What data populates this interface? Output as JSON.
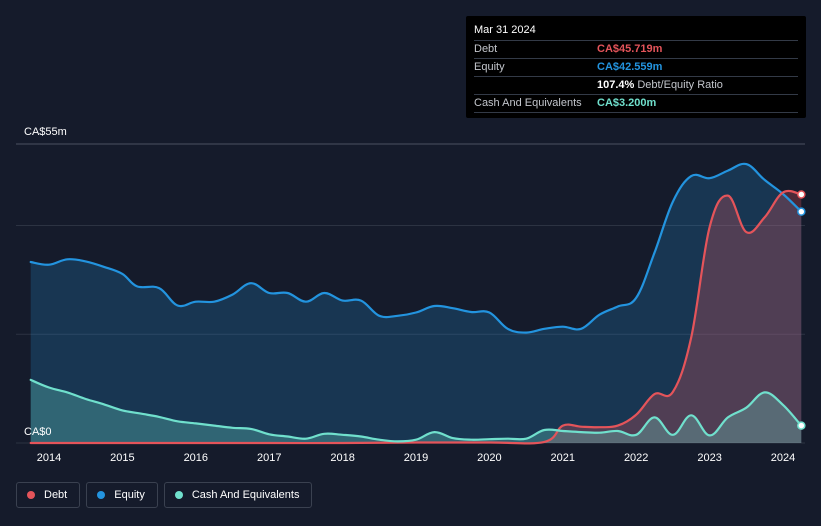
{
  "tooltip": {
    "date": "Mar 31 2024",
    "debt_label": "Debt",
    "debt_value": "CA$45.719m",
    "equity_label": "Equity",
    "equity_value": "CA$42.559m",
    "ratio_value": "107.4%",
    "ratio_label": "Debt/Equity Ratio",
    "cash_label": "Cash And Equivalents",
    "cash_value": "CA$3.200m"
  },
  "legend": [
    {
      "label": "Debt",
      "color": "#e4545a"
    },
    {
      "label": "Equity",
      "color": "#2394df"
    },
    {
      "label": "Cash And Equivalents",
      "color": "#70e0cd"
    }
  ],
  "colors": {
    "debt": "#e4545a",
    "equity": "#2394df",
    "cash": "#70e0cd",
    "background": "#151b2b",
    "grid": "#2c3342"
  },
  "chart_data": {
    "type": "area",
    "title": "",
    "xlabel": "",
    "ylabel": "",
    "y_top_label": "CA$55m",
    "y_bottom_label": "CA$0",
    "ylim": [
      0,
      55
    ],
    "xlim": [
      2013.55,
      2024.3
    ],
    "x_ticks": [
      "2014",
      "2015",
      "2016",
      "2017",
      "2018",
      "2019",
      "2020",
      "2021",
      "2022",
      "2023",
      "2024"
    ],
    "grid_values": [
      0,
      20,
      40,
      55
    ],
    "series": [
      {
        "name": "Equity",
        "points": [
          [
            2013.75,
            33.3
          ],
          [
            2014.0,
            32.8
          ],
          [
            2014.25,
            33.8
          ],
          [
            2014.5,
            33.4
          ],
          [
            2014.75,
            32.4
          ],
          [
            2015.0,
            31.1
          ],
          [
            2015.2,
            28.8
          ],
          [
            2015.5,
            28.5
          ],
          [
            2015.75,
            25.3
          ],
          [
            2016.0,
            26.0
          ],
          [
            2016.25,
            26.0
          ],
          [
            2016.5,
            27.3
          ],
          [
            2016.75,
            29.4
          ],
          [
            2017.0,
            27.6
          ],
          [
            2017.25,
            27.6
          ],
          [
            2017.5,
            26.0
          ],
          [
            2017.75,
            27.6
          ],
          [
            2018.0,
            26.2
          ],
          [
            2018.25,
            26.2
          ],
          [
            2018.5,
            23.4
          ],
          [
            2018.75,
            23.4
          ],
          [
            2019.0,
            24.0
          ],
          [
            2019.25,
            25.2
          ],
          [
            2019.5,
            24.8
          ],
          [
            2019.75,
            24.1
          ],
          [
            2020.0,
            24.0
          ],
          [
            2020.25,
            21.0
          ],
          [
            2020.5,
            20.3
          ],
          [
            2020.75,
            21.0
          ],
          [
            2021.0,
            21.4
          ],
          [
            2021.25,
            21.0
          ],
          [
            2021.5,
            23.6
          ],
          [
            2021.75,
            25.1
          ],
          [
            2022.0,
            26.7
          ],
          [
            2022.25,
            35.0
          ],
          [
            2022.5,
            44.4
          ],
          [
            2022.75,
            49.1
          ],
          [
            2023.0,
            48.7
          ],
          [
            2023.25,
            50.1
          ],
          [
            2023.5,
            51.3
          ],
          [
            2023.75,
            48.4
          ],
          [
            2024.0,
            45.8
          ],
          [
            2024.25,
            42.559
          ]
        ]
      },
      {
        "name": "Debt",
        "points": [
          [
            2013.75,
            0.0
          ],
          [
            2014.0,
            0.0
          ],
          [
            2015.0,
            0.0
          ],
          [
            2016.0,
            0.0
          ],
          [
            2017.0,
            0.0
          ],
          [
            2018.0,
            0.0
          ],
          [
            2019.0,
            0.1
          ],
          [
            2020.0,
            0.1
          ],
          [
            2020.75,
            0.2
          ],
          [
            2021.0,
            3.2
          ],
          [
            2021.25,
            3.0
          ],
          [
            2021.5,
            2.9
          ],
          [
            2021.75,
            3.2
          ],
          [
            2022.0,
            5.2
          ],
          [
            2022.25,
            9.0
          ],
          [
            2022.5,
            9.4
          ],
          [
            2022.75,
            19.4
          ],
          [
            2023.0,
            39.7
          ],
          [
            2023.25,
            45.5
          ],
          [
            2023.5,
            38.8
          ],
          [
            2023.75,
            41.5
          ],
          [
            2024.0,
            46.1
          ],
          [
            2024.25,
            45.719
          ]
        ]
      },
      {
        "name": "Cash And Equivalents",
        "points": [
          [
            2013.75,
            11.6
          ],
          [
            2014.0,
            10.2
          ],
          [
            2014.25,
            9.3
          ],
          [
            2014.5,
            8.1
          ],
          [
            2014.75,
            7.1
          ],
          [
            2015.0,
            6.0
          ],
          [
            2015.25,
            5.4
          ],
          [
            2015.5,
            4.8
          ],
          [
            2015.75,
            4.0
          ],
          [
            2016.0,
            3.6
          ],
          [
            2016.25,
            3.2
          ],
          [
            2016.5,
            2.8
          ],
          [
            2016.75,
            2.6
          ],
          [
            2017.0,
            1.6
          ],
          [
            2017.25,
            1.2
          ],
          [
            2017.5,
            0.8
          ],
          [
            2017.75,
            1.7
          ],
          [
            2018.0,
            1.5
          ],
          [
            2018.25,
            1.2
          ],
          [
            2018.5,
            0.6
          ],
          [
            2018.75,
            0.3
          ],
          [
            2019.0,
            0.6
          ],
          [
            2019.25,
            2.0
          ],
          [
            2019.5,
            0.9
          ],
          [
            2019.75,
            0.6
          ],
          [
            2020.0,
            0.7
          ],
          [
            2020.25,
            0.8
          ],
          [
            2020.5,
            0.8
          ],
          [
            2020.75,
            2.4
          ],
          [
            2021.0,
            2.2
          ],
          [
            2021.25,
            2.0
          ],
          [
            2021.5,
            1.9
          ],
          [
            2021.75,
            2.2
          ],
          [
            2022.0,
            1.5
          ],
          [
            2022.25,
            4.7
          ],
          [
            2022.5,
            1.5
          ],
          [
            2022.75,
            5.1
          ],
          [
            2023.0,
            1.4
          ],
          [
            2023.25,
            4.7
          ],
          [
            2023.5,
            6.5
          ],
          [
            2023.75,
            9.3
          ],
          [
            2024.0,
            7.0
          ],
          [
            2024.25,
            3.2
          ]
        ]
      }
    ]
  }
}
